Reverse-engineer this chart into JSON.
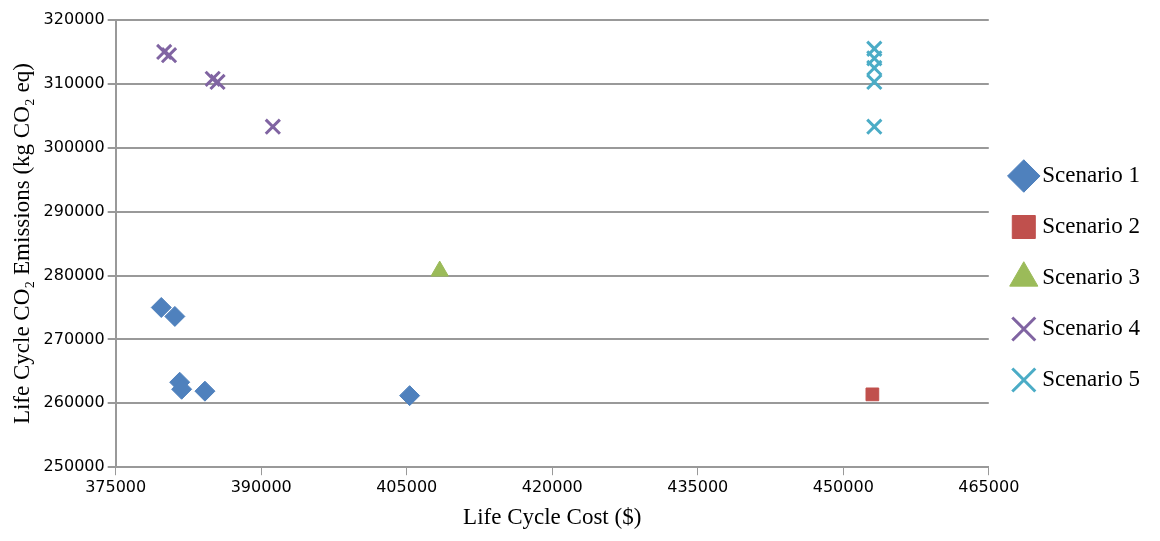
{
  "chart_data": {
    "type": "scatter",
    "xlabel": "Life Cycle Cost ($)",
    "ylabel": "Life Cycle CO₂ Emissions (kg CO₂ eq)",
    "xlim": [
      375000,
      465000
    ],
    "xticks": [
      375000,
      390000,
      405000,
      420000,
      435000,
      450000,
      465000
    ],
    "ylim": [
      250000,
      320000
    ],
    "yticks": [
      250000,
      260000,
      270000,
      280000,
      290000,
      300000,
      310000,
      320000
    ],
    "grid": "y",
    "legend": "right",
    "series": [
      {
        "name": "Scenario 1",
        "color": "#4f81bd",
        "marker": "diamond",
        "x": [
          379700,
          381100,
          381600,
          381800,
          384200,
          405300
        ],
        "values": [
          275000,
          273600,
          263300,
          262200,
          261900,
          261200
        ]
      },
      {
        "name": "Scenario 2",
        "color": "#c0504d",
        "marker": "square",
        "x": [
          453000
        ],
        "values": [
          261400
        ]
      },
      {
        "name": "Scenario 3",
        "color": "#9bbb59",
        "marker": "triangle",
        "x": [
          408400
        ],
        "values": [
          280700
        ]
      },
      {
        "name": "Scenario 4",
        "color": "#8064a2",
        "marker": "cross",
        "x": [
          380000,
          380500,
          385000,
          385500,
          391200
        ],
        "values": [
          315000,
          314500,
          310800,
          310300,
          303300
        ]
      },
      {
        "name": "Scenario 5",
        "color": "#4bacc6",
        "marker": "cross",
        "x": [
          453200,
          453200,
          453200,
          453200,
          453200
        ],
        "values": [
          315500,
          314000,
          312500,
          310300,
          303300
        ]
      }
    ]
  }
}
